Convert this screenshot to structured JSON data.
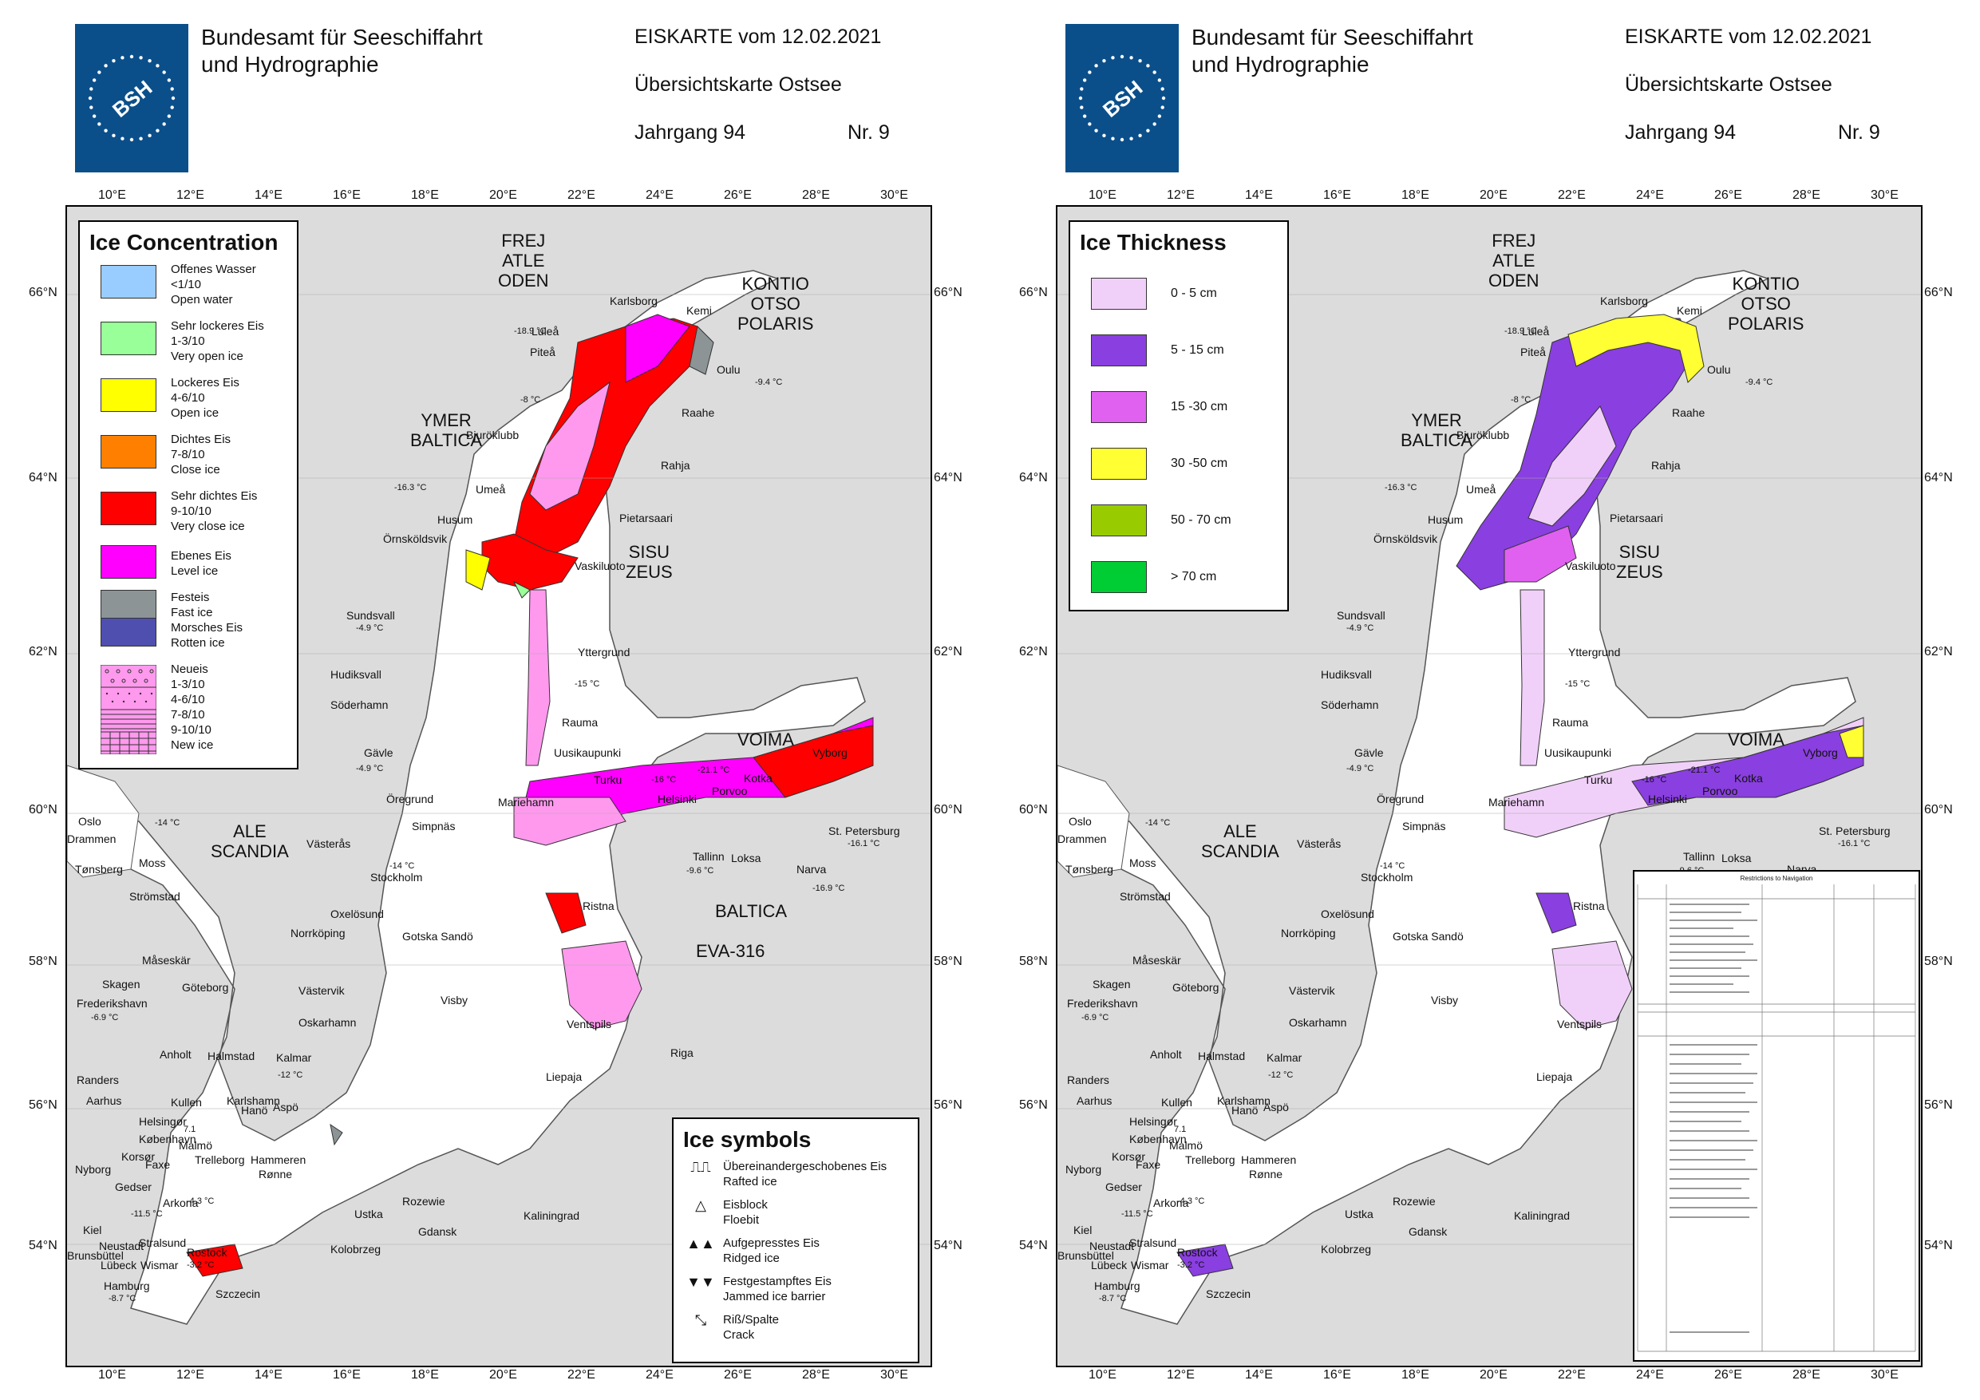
{
  "header": {
    "agency_line1": "Bundesamt für Seeschiffahrt",
    "agency_line2": "und Hydrographie",
    "logo_text": "BSH",
    "map_title": "EISKARTE vom 12.02.2021",
    "map_subtitle": "Übersichtskarte Ostsee",
    "volume": "Jahrgang 94",
    "number": "Nr. 9"
  },
  "axes": {
    "lon_labels": [
      "10°E",
      "12°E",
      "14°E",
      "16°E",
      "18°E",
      "20°E",
      "22°E",
      "24°E",
      "26°E",
      "28°E",
      "30°E"
    ],
    "lat_labels": [
      "66°N",
      "64°N",
      "62°N",
      "60°N",
      "58°N",
      "56°N",
      "54°N"
    ]
  },
  "places": {
    "big": [
      "FREJ",
      "ATLE",
      "ODEN",
      "KONTIO",
      "OTSO",
      "POLARIS",
      "YMER",
      "BALTICA",
      "SISU",
      "ZEUS",
      "VOIMA",
      "ALE",
      "SCANDIA",
      "BALTICA",
      "EVA-316"
    ],
    "cities": [
      "Karlsborg",
      "Kemi",
      "Luleå",
      "Piteå",
      "Oulu",
      "Raahe",
      "Bjuröklubb",
      "Rahja",
      "Umeå",
      "Pietarsaari",
      "Husum",
      "Örnsköldsvik",
      "Vaskiluoto",
      "Sundsvall",
      "Yttergrund",
      "Hudiksvall",
      "Söderhamn",
      "Rauma",
      "Gävle",
      "Uusikaupunki",
      "Turku",
      "Kotka",
      "Porvoo",
      "Vyborg",
      "Helsinki",
      "Öregrund",
      "Mariehamn",
      "Simpnäs",
      "St. Petersburg",
      "Oslo",
      "Drammen",
      "Tønsberg",
      "Moss",
      "Strömstad",
      "Västerås",
      "Stockholm",
      "Tallinn",
      "Loksa",
      "Narva",
      "Ristna",
      "Oxelösund",
      "Norrköping",
      "Gotska Sandö",
      "Måseskär",
      "Skagen",
      "Göteborg",
      "Frederikshavn",
      "Västervik",
      "Visby",
      "Ventspils",
      "Oskarhamn",
      "Riga",
      "Anholt",
      "Halmstad",
      "Kalmar",
      "Randers",
      "Aarhus",
      "Kullen",
      "Karlshamn",
      "Hanö",
      "Aspö",
      "Liepaja",
      "Helsingør",
      "København",
      "Malmö",
      "Korsør",
      "Faxe",
      "Nyborg",
      "Trelleborg",
      "Hammeren",
      "Rønne",
      "Gedser",
      "Arkona",
      "Rozewie",
      "Kiel",
      "Ustka",
      "Kaliningrad",
      "Gdansk",
      "Neustadt",
      "Stralsund",
      "Rostock",
      "Brunsbüttel",
      "Lübeck",
      "Wismar",
      "Kolobrzeg",
      "Hamburg",
      "Szczecin"
    ]
  },
  "temps": [
    "-18.9 °C",
    "-9.4 °C",
    "-8 °C",
    "-16.3 °C",
    "-4.9 °C",
    "-15 °C",
    "-4.9 °C",
    "-16 °C",
    "-21.1 °C",
    "-14 °C",
    "-16.1 °C",
    "-9.6 °C",
    "-16.9 °C",
    "-14 °C",
    "-6.9 °C",
    "-12 °C",
    "-11.5 °C",
    "-4.3 °C",
    "-3.2 °C",
    "-8.7 °C",
    "7.1"
  ],
  "left_panel": {
    "legend_title": "Ice Concentration",
    "legend_items": [
      {
        "color": "#99ccff",
        "lines": [
          "Offenes Wasser",
          "<1/10",
          "Open water"
        ]
      },
      {
        "color": "#99ff99",
        "lines": [
          "Sehr lockeres Eis",
          "1-3/10",
          "Very open ice"
        ]
      },
      {
        "color": "#ffff00",
        "lines": [
          "Lockeres Eis",
          "4-6/10",
          "Open ice"
        ]
      },
      {
        "color": "#ff8000",
        "lines": [
          "Dichtes Eis",
          "7-8/10",
          "Close ice"
        ]
      },
      {
        "color": "#ff0000",
        "lines": [
          "Sehr dichtes Eis",
          "9-10/10",
          "Very close ice"
        ]
      },
      {
        "color": "#ff00ff",
        "lines": [
          "Ebenes Eis",
          "Level ice"
        ]
      },
      {
        "color": "#8c9496",
        "lines": [
          "Festeis",
          "Fast ice"
        ]
      },
      {
        "color": "#4f4fb0",
        "lines": [
          "Morsches Eis",
          "Rotten ice"
        ]
      },
      {
        "color": "#ff99ee",
        "lines": [
          "Neueis",
          "1-3/10",
          "4-6/10",
          "7-8/10",
          "9-10/10",
          "New ice"
        ]
      }
    ],
    "symbols_title": "Ice symbols",
    "symbols": [
      {
        "icon": "⎍⎍",
        "lines": [
          "Übereinandergeschobenes Eis",
          "Rafted ice"
        ]
      },
      {
        "icon": "△",
        "lines": [
          "Eisblock",
          "Floebit"
        ]
      },
      {
        "icon": "▲▲",
        "lines": [
          "Aufgepresstes Eis",
          "Ridged ice"
        ]
      },
      {
        "icon": "▼▼",
        "lines": [
          "Festgestampftes Eis",
          "Jammed ice barrier"
        ]
      },
      {
        "icon": "⤡",
        "lines": [
          "Riß/Spalte",
          "Crack"
        ]
      }
    ]
  },
  "right_panel": {
    "legend_title": "Ice Thickness",
    "legend_items": [
      {
        "color": "#f0d0f8",
        "label": "0 - 5 cm"
      },
      {
        "color": "#8a3fe0",
        "label": "5 - 15 cm"
      },
      {
        "color": "#e060f0",
        "label": "15 -30 cm"
      },
      {
        "color": "#ffff33",
        "label": "30 -50 cm"
      },
      {
        "color": "#99cc00",
        "label": "50 - 70 cm"
      },
      {
        "color": "#00cc33",
        "label": "> 70 cm"
      }
    ],
    "restrictions_title": "Restrictions to Navigation"
  }
}
